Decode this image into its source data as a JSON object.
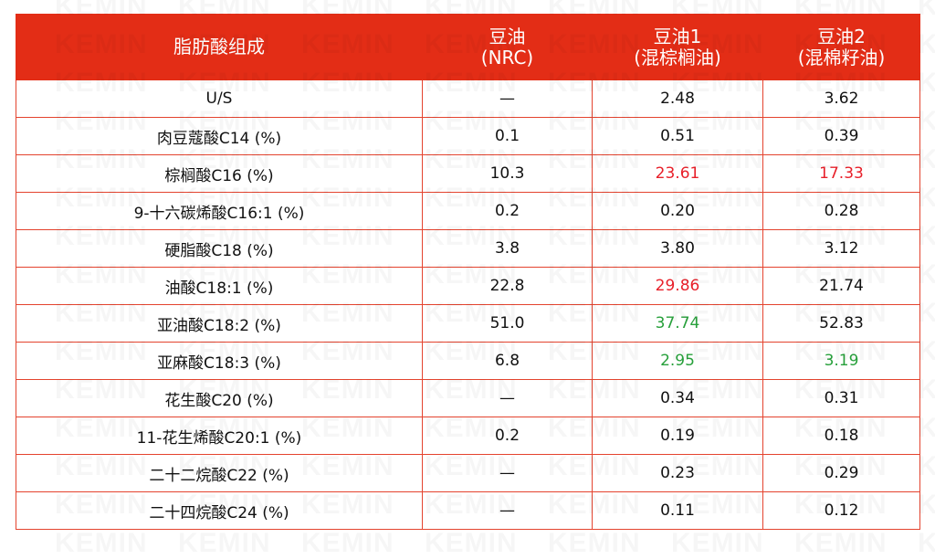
{
  "watermark": "KEMIN",
  "colors": {
    "header": "#e32d16",
    "highlight_red": "#e8202a",
    "highlight_green": "#27a03b"
  },
  "headers": [
    "脂肪酸组成",
    "豆油\n(NRC)",
    "豆油1\n(混棕榈油)",
    "豆油2\n(混棉籽油)"
  ],
  "header_lines": [
    [
      "脂肪酸组成"
    ],
    [
      "豆油",
      "(NRC)"
    ],
    [
      "豆油1",
      "(混棕榈油)"
    ],
    [
      "豆油2",
      "(混棉籽油)"
    ]
  ],
  "rows": [
    {
      "cells": [
        "U/S",
        "—",
        "2.48",
        "3.62"
      ],
      "styles": [
        "",
        "",
        "",
        ""
      ]
    },
    {
      "cells": [
        "肉豆蔻酸C14 (%)",
        "0.1",
        "0.51",
        "0.39"
      ],
      "styles": [
        "",
        "",
        "",
        ""
      ]
    },
    {
      "cells": [
        "棕榈酸C16 (%)",
        "10.3",
        "23.61",
        "17.33"
      ],
      "styles": [
        "",
        "",
        "red",
        "red"
      ]
    },
    {
      "cells": [
        "9-十六碳烯酸C16:1 (%)",
        "0.2",
        "0.20",
        "0.28"
      ],
      "styles": [
        "",
        "",
        "",
        ""
      ]
    },
    {
      "cells": [
        "硬脂酸C18 (%)",
        "3.8",
        "3.80",
        "3.12"
      ],
      "styles": [
        "",
        "",
        "",
        ""
      ]
    },
    {
      "cells": [
        "油酸C18:1 (%)",
        "22.8",
        "29.86",
        "21.74"
      ],
      "styles": [
        "",
        "",
        "red",
        ""
      ]
    },
    {
      "cells": [
        "亚油酸C18:2 (%)",
        "51.0",
        "37.74",
        "52.83"
      ],
      "styles": [
        "",
        "",
        "green",
        ""
      ]
    },
    {
      "cells": [
        "亚麻酸C18:3 (%)",
        "6.8",
        "2.95",
        "3.19"
      ],
      "styles": [
        "",
        "",
        "green",
        "green"
      ]
    },
    {
      "cells": [
        "花生酸C20 (%)",
        "—",
        "0.34",
        "0.31"
      ],
      "styles": [
        "",
        "",
        "",
        ""
      ]
    },
    {
      "cells": [
        "11-花生烯酸C20:1 (%)",
        "0.2",
        "0.19",
        "0.18"
      ],
      "styles": [
        "",
        "",
        "",
        ""
      ]
    },
    {
      "cells": [
        "二十二烷酸C22 (%)",
        "—",
        "0.23",
        "0.29"
      ],
      "styles": [
        "",
        "",
        "",
        ""
      ]
    },
    {
      "cells": [
        "二十四烷酸C24 (%)",
        "—",
        "0.11",
        "0.12"
      ],
      "styles": [
        "",
        "",
        "",
        ""
      ]
    }
  ]
}
